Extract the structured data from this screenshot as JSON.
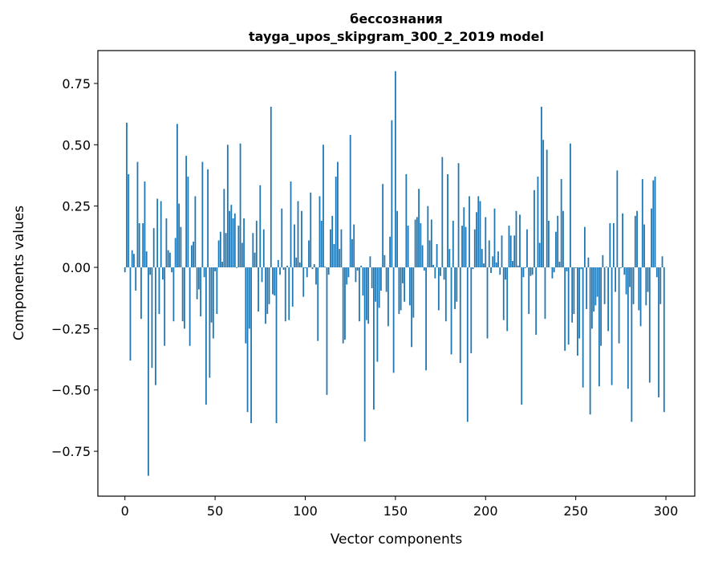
{
  "chart_data": {
    "type": "bar",
    "title": "бессознания",
    "subtitle": "tayga_upos_skipgram_300_2_2019 model",
    "xlabel": "Vector components",
    "ylabel": "Components values",
    "xlim": [
      -15,
      316
    ],
    "ylim": [
      -0.933,
      0.884
    ],
    "xticks": [
      0,
      50,
      100,
      150,
      200,
      250,
      300
    ],
    "xtick_labels": [
      "0",
      "50",
      "100",
      "150",
      "200",
      "250",
      "300"
    ],
    "yticks": [
      0.75,
      0.5,
      0.25,
      0,
      -0.25,
      -0.5,
      -0.75
    ],
    "ytick_labels": [
      "0.75",
      "0.50",
      "0.25",
      "0.00",
      "−0.25",
      "−0.50",
      "−0.75"
    ],
    "grid": false,
    "bar_color": "#1f77b4",
    "values": [
      -0.02,
      0.59,
      0.38,
      -0.38,
      0.07,
      0.055,
      -0.095,
      0.43,
      0.18,
      -0.21,
      0.18,
      0.35,
      0.065,
      -0.85,
      -0.03,
      -0.41,
      0.16,
      -0.48,
      0.28,
      -0.19,
      0.27,
      -0.05,
      -0.32,
      0.2,
      0.07,
      0.06,
      -0.02,
      -0.22,
      0.12,
      0.585,
      0.26,
      0.165,
      -0.22,
      -0.25,
      0.455,
      0.37,
      -0.32,
      0.09,
      0.105,
      0.29,
      -0.13,
      -0.09,
      -0.2,
      0.43,
      -0.04,
      -0.56,
      0.4,
      -0.45,
      -0.225,
      -0.29,
      -0.016,
      -0.19,
      0.11,
      0.145,
      0.023,
      0.32,
      0.14,
      0.5,
      0.23,
      0.255,
      0.2,
      0.22,
      -0.003,
      0.17,
      0.505,
      0.1,
      0.2,
      -0.31,
      -0.59,
      -0.25,
      -0.635,
      0.14,
      0.06,
      0.19,
      -0.18,
      0.335,
      -0.06,
      0.155,
      -0.23,
      -0.19,
      -0.15,
      0.655,
      -0.11,
      -0.115,
      -0.635,
      0.03,
      -0.03,
      0.24,
      -0.01,
      -0.22,
      0.007,
      -0.215,
      0.35,
      -0.16,
      0.175,
      0.04,
      0.27,
      0.02,
      0.23,
      -0.12,
      -0.003,
      -0.04,
      0.11,
      0.305,
      -0.007,
      0.013,
      -0.07,
      -0.3,
      0.29,
      0.19,
      0.5,
      0.003,
      -0.52,
      -0.03,
      0.155,
      0.21,
      0.095,
      0.37,
      0.43,
      0.075,
      0.155,
      -0.31,
      -0.295,
      -0.07,
      -0.04,
      0.54,
      0.115,
      0.175,
      -0.06,
      -0.013,
      -0.22,
      0.007,
      -0.115,
      -0.71,
      -0.215,
      -0.23,
      0.045,
      -0.085,
      -0.58,
      -0.14,
      -0.385,
      -0.165,
      -0.095,
      0.34,
      0.05,
      -0.1,
      -0.24,
      0.125,
      0.6,
      -0.43,
      0.8,
      0.23,
      -0.19,
      -0.175,
      -0.065,
      -0.14,
      0.38,
      0.17,
      -0.155,
      -0.325,
      -0.205,
      0.195,
      0.205,
      0.32,
      0.18,
      0.09,
      -0.013,
      -0.42,
      0.25,
      0.11,
      0.195,
      0.01,
      -0.045,
      0.095,
      -0.175,
      -0.035,
      0.45,
      -0.05,
      -0.22,
      0.38,
      0.075,
      -0.355,
      0.19,
      -0.17,
      -0.14,
      0.425,
      -0.39,
      0.17,
      0.245,
      0.165,
      -0.63,
      0.29,
      -0.35,
      -0.007,
      0.155,
      0.225,
      0.29,
      0.27,
      0.075,
      0.016,
      0.205,
      -0.29,
      0.11,
      -0.023,
      0.045,
      0.24,
      0.02,
      0.065,
      -0.03,
      0.13,
      -0.215,
      -0.05,
      -0.26,
      0.17,
      0.13,
      0.026,
      0.13,
      0.23,
      0.007,
      0.215,
      -0.56,
      -0.04,
      -0.003,
      0.155,
      -0.19,
      -0.035,
      -0.03,
      0.315,
      -0.275,
      0.37,
      0.1,
      0.655,
      0.52,
      -0.21,
      0.48,
      0.19,
      0.0,
      -0.045,
      -0.02,
      0.145,
      0.21,
      0.023,
      0.36,
      0.23,
      -0.34,
      -0.016,
      -0.315,
      0.505,
      -0.225,
      -0.19,
      -0.003,
      -0.36,
      -0.29,
      -0.007,
      -0.49,
      0.165,
      -0.17,
      0.04,
      -0.6,
      -0.25,
      -0.18,
      -0.155,
      -0.12,
      -0.485,
      -0.32,
      0.05,
      -0.15,
      0.003,
      -0.26,
      0.18,
      -0.48,
      0.18,
      -0.1,
      0.395,
      -0.31,
      -0.003,
      0.22,
      -0.03,
      -0.11,
      -0.495,
      -0.08,
      -0.63,
      -0.15,
      0.21,
      0.23,
      -0.175,
      -0.24,
      0.36,
      0.175,
      -0.155,
      -0.1,
      -0.47,
      0.24,
      0.355,
      0.37,
      -0.04,
      -0.53,
      -0.15,
      0.045,
      -0.59
    ]
  }
}
